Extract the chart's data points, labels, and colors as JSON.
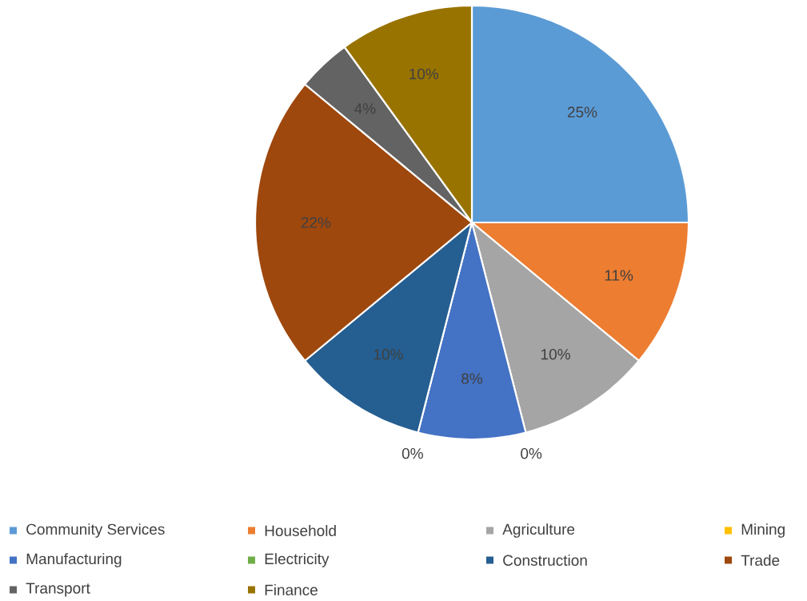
{
  "chart_data": {
    "type": "pie",
    "categories": [
      "Community Services",
      "Household",
      "Agriculture",
      "Mining",
      "Manufacturing",
      "Electricity",
      "Construction",
      "Trade",
      "Transport",
      "Finance"
    ],
    "values": [
      25,
      11,
      10,
      0,
      8,
      0,
      10,
      22,
      4,
      10
    ],
    "colors": [
      "#5b9bd5",
      "#ed7d31",
      "#a5a5a5",
      "#ffc000",
      "#4472c4",
      "#70ad47",
      "#255e91",
      "#9e480e",
      "#636363",
      "#997300"
    ],
    "value_labels": [
      "25%",
      "11%",
      "10%",
      "0%",
      "8%",
      "0%",
      "10%",
      "22%",
      "4%",
      "10%"
    ],
    "legend": "bottom"
  }
}
